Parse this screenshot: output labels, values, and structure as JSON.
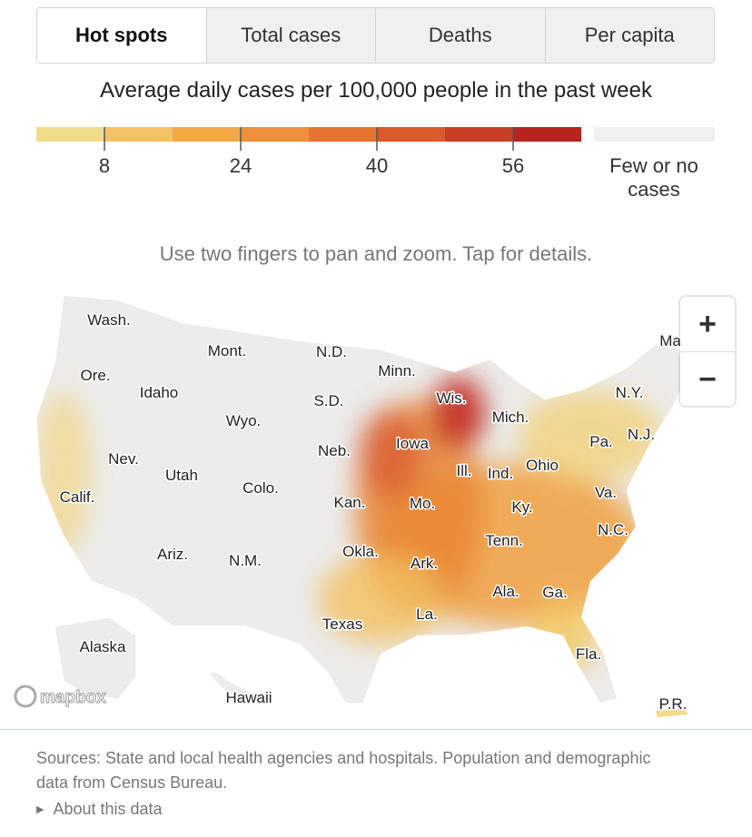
{
  "tabs": [
    "Hot spots",
    "Total cases",
    "Deaths",
    "Per capita"
  ],
  "subtitle": "Average daily cases per 100,000 people in the past week",
  "legend": {
    "colors": [
      "#f1dc8c",
      "#f3c262",
      "#f3a845",
      "#ee8f3a",
      "#e67430",
      "#d95a2a",
      "#c93f25",
      "#b8231f"
    ],
    "ticks": [
      8,
      24,
      40,
      56
    ],
    "none_label": "Few or no cases",
    "none_color": "#f0f0f0"
  },
  "hint": "Use two fingers to pan and zoom. Tap for details.",
  "map": {
    "labels": [
      "Wash.",
      "Mont.",
      "N.D.",
      "Minn.",
      "Ore.",
      "Idaho",
      "S.D.",
      "Wis.",
      "Mich.",
      "N.Y.",
      "Ma",
      "Wyo.",
      "Pa.",
      "N.J.",
      "Neb.",
      "Iowa",
      "Nev.",
      "Utah",
      "Ill.",
      "Ind.",
      "Ohio",
      "Colo.",
      "Calif.",
      "Va.",
      "Kan.",
      "Mo.",
      "Ky.",
      "N.C.",
      "Tenn.",
      "Okla.",
      "Ariz.",
      "N.M.",
      "Ark.",
      "Ala.",
      "Ga.",
      "La.",
      "Texas",
      "Alaska",
      "Fla.",
      "Hawaii",
      "P.R."
    ],
    "zoom_in": "+",
    "zoom_out": "−",
    "attribution": "mapbox"
  },
  "footer": {
    "sources": "Sources: State and local health agencies and hospitals. Population and demographic data from Census Bureau.",
    "about": "About this data"
  }
}
